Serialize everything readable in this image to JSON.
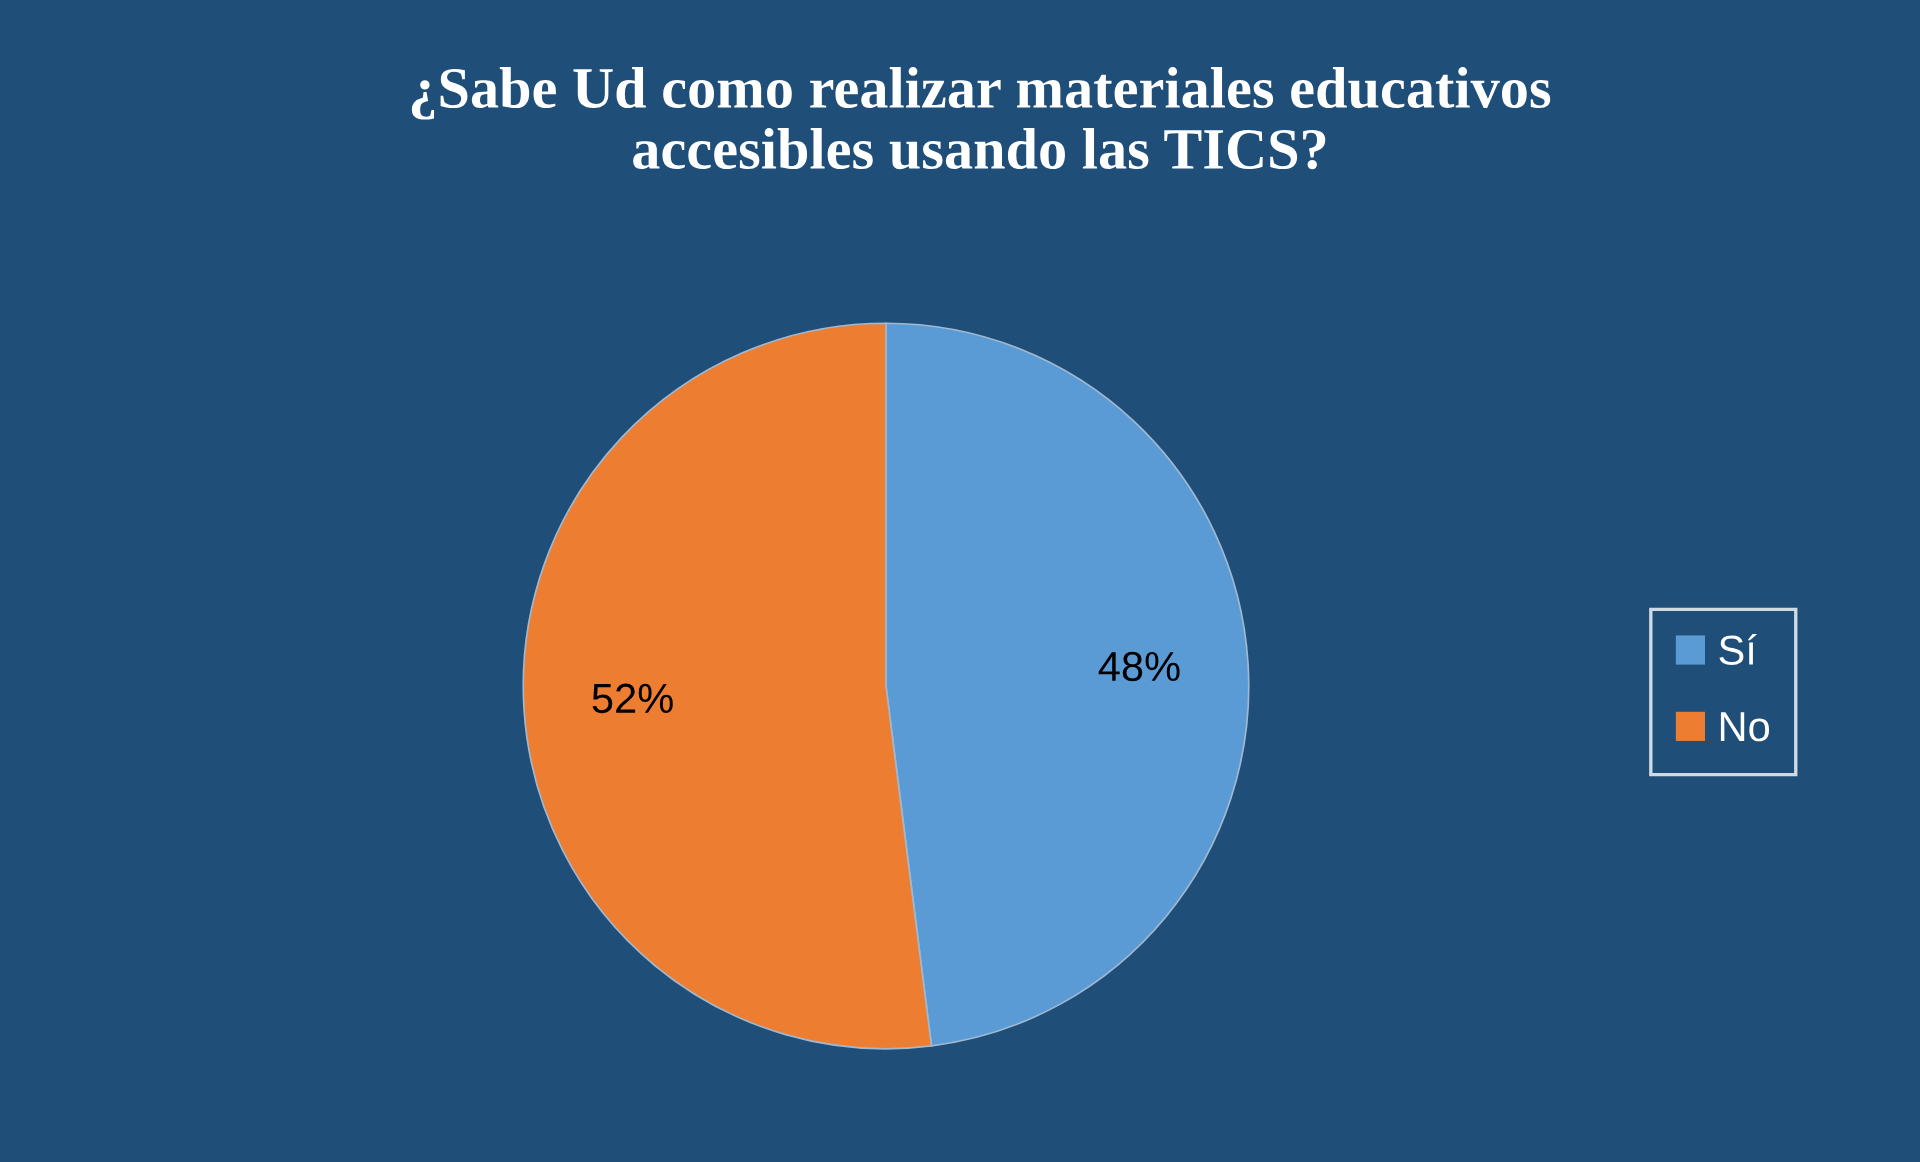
{
  "chart_data": {
    "type": "pie",
    "title": "¿Sabe Ud como realizar materiales educativos\naccesibles usando las TICS?",
    "categories": [
      "Sí",
      "No"
    ],
    "values": [
      48,
      52
    ],
    "colors": [
      "#5b9bd5",
      "#ed7d31"
    ],
    "value_labels": [
      "48%",
      "52%"
    ],
    "legend": "right"
  }
}
